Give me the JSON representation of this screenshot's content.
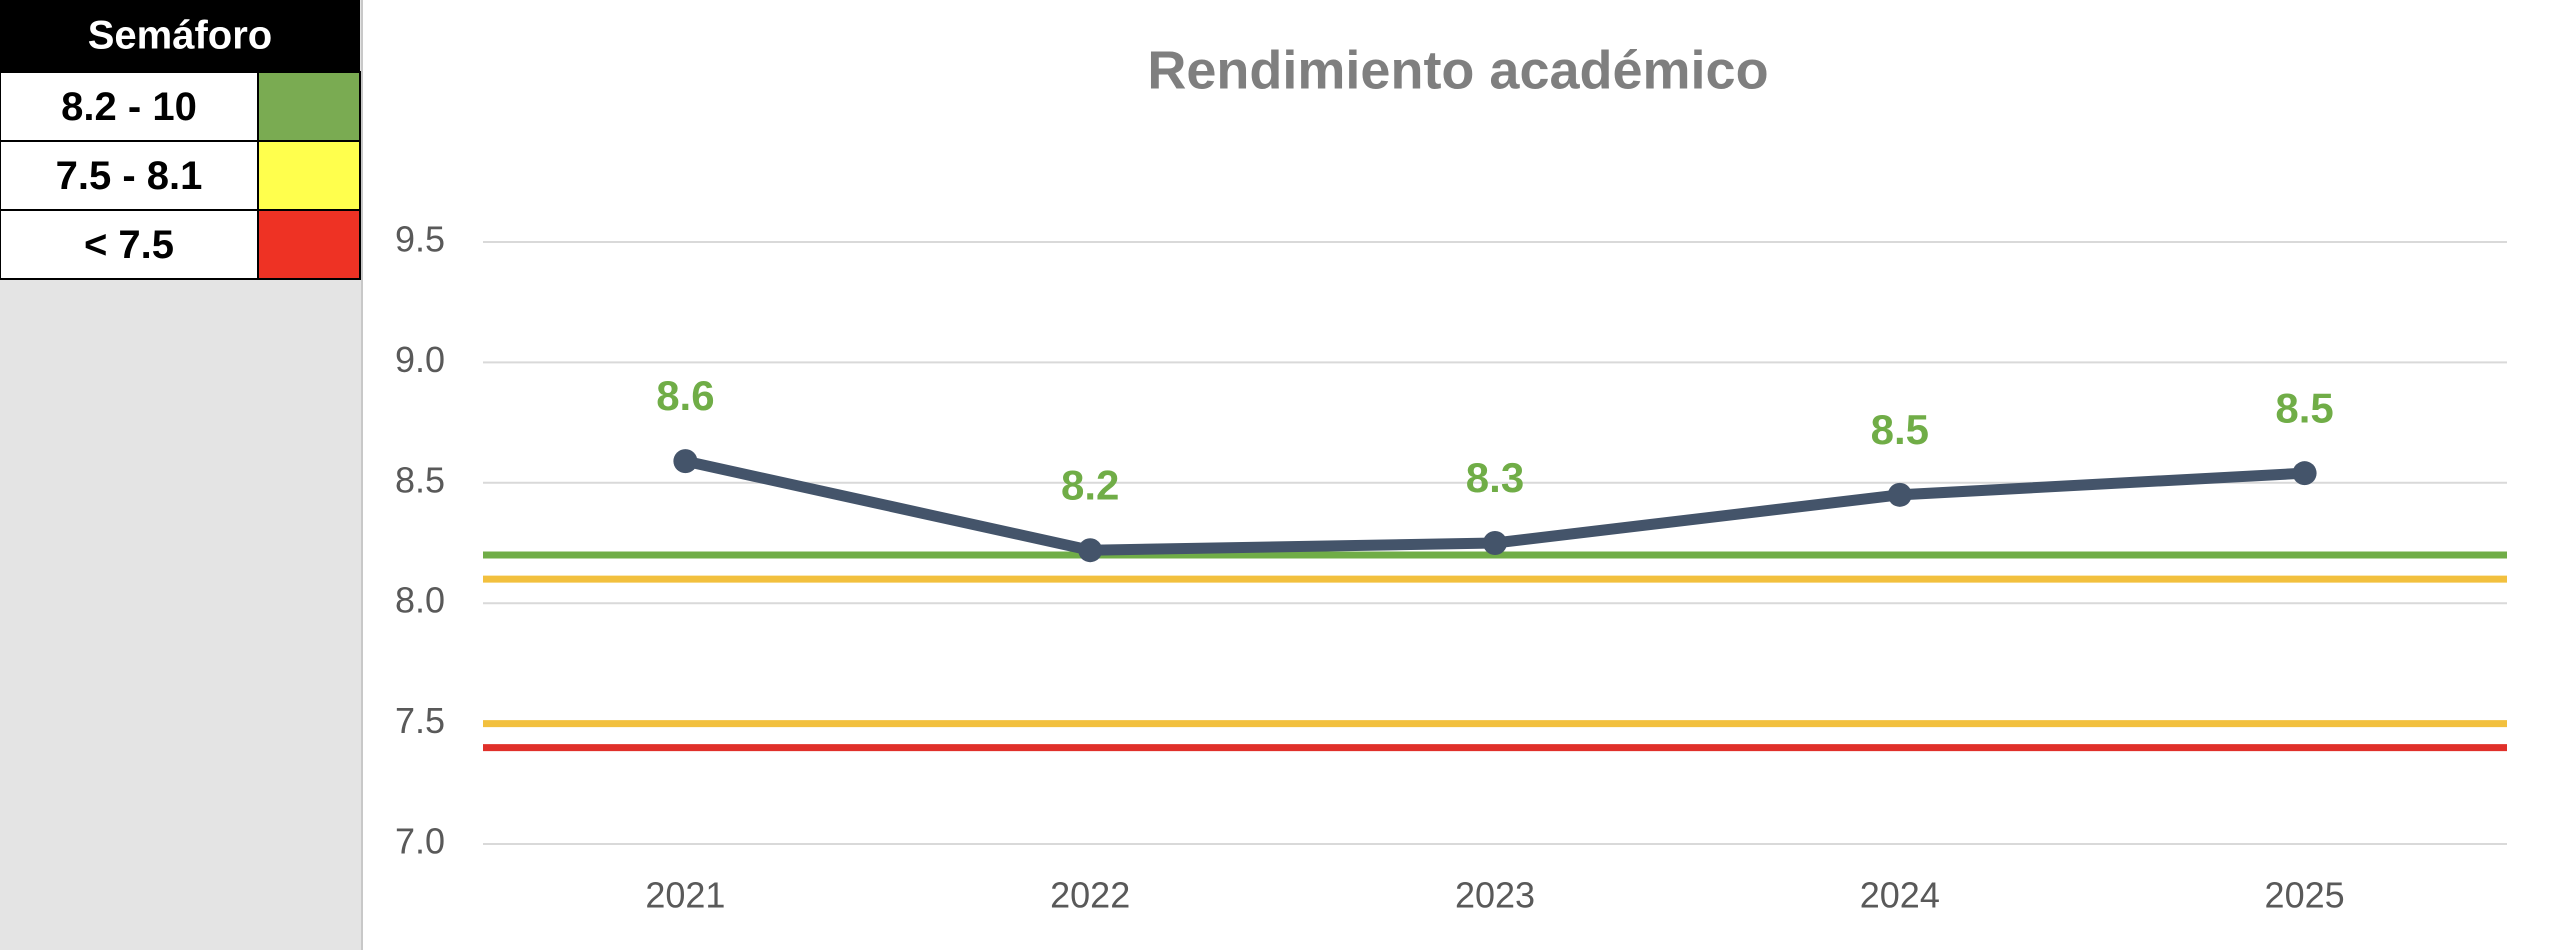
{
  "chart_data": {
    "type": "line",
    "title": "Rendimiento académico",
    "categories": [
      "2021",
      "2022",
      "2023",
      "2024",
      "2025"
    ],
    "series": [
      {
        "color": "#44546a",
        "values": [
          8.59,
          8.22,
          8.25,
          8.45,
          8.54
        ],
        "value_labels": [
          "8.6",
          "8.2",
          "8.3",
          "8.5",
          "8.5"
        ],
        "label_color": "#70ad47"
      }
    ],
    "threshold_lines": [
      {
        "value": 8.2,
        "color": "#70ad47"
      },
      {
        "value": 8.1,
        "color": "#f2c03e"
      },
      {
        "value": 7.5,
        "color": "#f2c03e"
      },
      {
        "value": 7.4,
        "color": "#e0302a"
      }
    ],
    "ylim": [
      7.0,
      9.5
    ],
    "yticks": [
      {
        "value": 7,
        "label": "7.0"
      },
      7.5,
      {
        "value": 8,
        "label": "8.0"
      },
      8.5,
      {
        "value": 9,
        "label": "9.0"
      },
      9.5
    ],
    "grid": true,
    "legend_table": {
      "title": "Semáforo",
      "rows": [
        {
          "label": "8.2 - 10",
          "color": "#7aab52"
        },
        {
          "label": "7.5 - 8.1",
          "color": "#ffff4d"
        },
        {
          "label": "< 7.5",
          "color": "#ee3224"
        }
      ]
    }
  }
}
